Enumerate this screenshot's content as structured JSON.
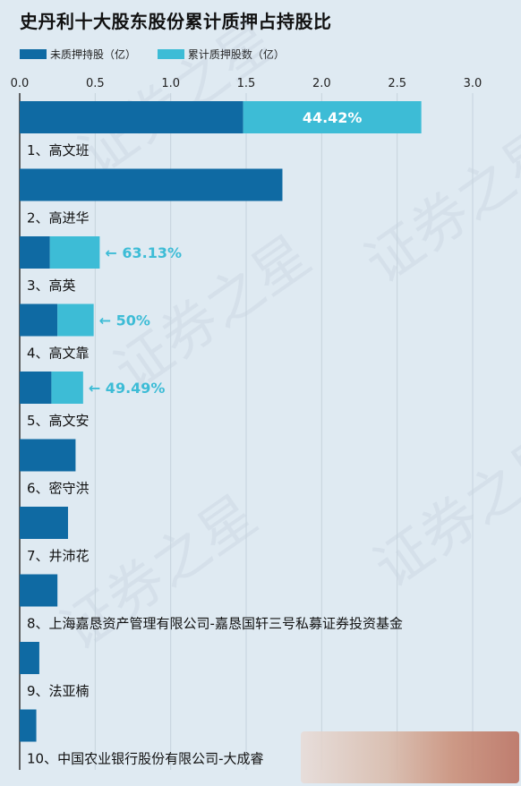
{
  "title": "史丹利十大股东股份累计质押占持股比",
  "legend": [
    {
      "label": "未质押持股（亿）",
      "color": "#0f6aa3"
    },
    {
      "label": "累计质押股数（亿）",
      "color": "#3dbcd6"
    }
  ],
  "watermark": "证券之星",
  "chart_data": {
    "type": "bar",
    "orientation": "horizontal",
    "stacked": true,
    "xlim": [
      0,
      3.0
    ],
    "xticks": [
      "0.0",
      "0.5",
      "1.0",
      "1.5",
      "2.0",
      "2.5",
      "3.0"
    ],
    "grid": true,
    "categories": [
      "1、高文班",
      "2、高进华",
      "3、高英",
      "4、高文靠",
      "5、高文安",
      "6、密守洪",
      "7、井沛花",
      "8、上海嘉恳资产管理有限公司-嘉恳国轩三号私募证券投资基金",
      "9、法亚楠",
      "10、中国农业银行股份有限公司-大成睿"
    ],
    "series": [
      {
        "name": "未质押持股（亿）",
        "color": "#0f6aa3",
        "values": [
          1.48,
          1.74,
          0.2,
          0.25,
          0.21,
          0.37,
          0.32,
          0.25,
          0.13,
          0.11
        ]
      },
      {
        "name": "累计质押股数（亿）",
        "color": "#3dbcd6",
        "values": [
          1.18,
          0,
          0.33,
          0.24,
          0.21,
          0,
          0,
          0,
          0,
          0
        ]
      }
    ],
    "labels": [
      "44.42%",
      "",
      "63.13%",
      "50%",
      "49.49%",
      "",
      "",
      "",
      "",
      ""
    ]
  }
}
